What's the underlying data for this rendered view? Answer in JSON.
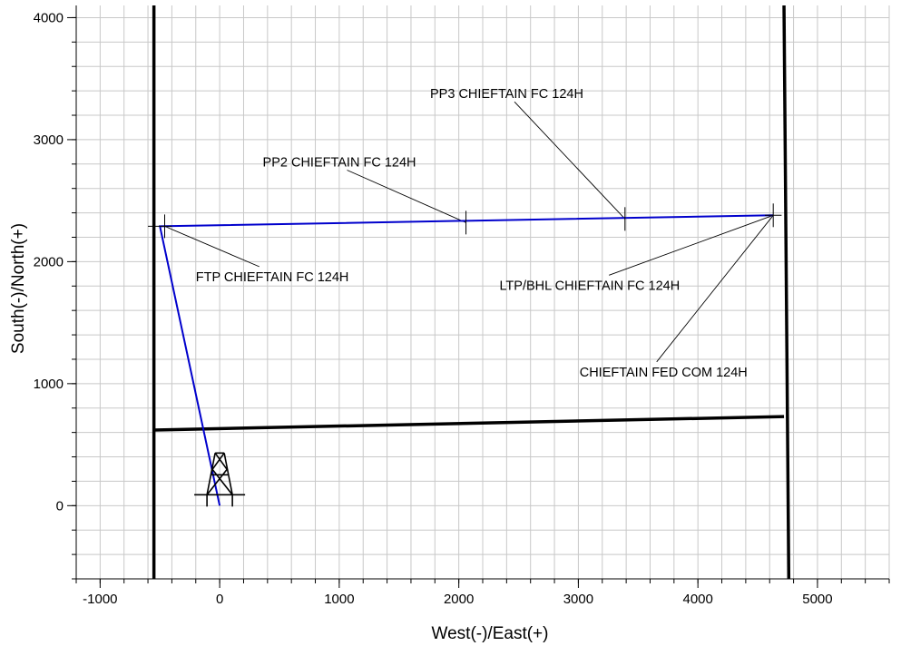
{
  "chart_data": {
    "type": "line",
    "title": "",
    "xlabel": "West(-)/East(+)",
    "ylabel": "South(-)/North(+)",
    "xlim": [
      -1200,
      5600
    ],
    "ylim": [
      -600,
      4100
    ],
    "xticks": [
      -1000,
      0,
      1000,
      2000,
      3000,
      4000,
      5000
    ],
    "xtick_labels": [
      "-1000",
      "0",
      "1000",
      "2000",
      "3000",
      "4000",
      "5000"
    ],
    "yticks": [
      0,
      1000,
      2000,
      3000,
      4000
    ],
    "ytick_labels": [
      "0",
      "1000",
      "2000",
      "3000",
      "4000"
    ],
    "grid": true,
    "grid_step": 200,
    "colors": {
      "wellpath": "#0000cc",
      "boundary": "#000000",
      "grid": "#c8c8c8",
      "label": "#000000"
    },
    "wellpath": {
      "name": "CHIEFTAIN FED COM 124H",
      "x": [
        0,
        -500,
        4630
      ],
      "y": [
        0,
        2290,
        2380
      ]
    },
    "boundaries": [
      {
        "x": [
          -550,
          -550
        ],
        "y": [
          4100,
          -600
        ]
      },
      {
        "x": [
          4720,
          4760
        ],
        "y": [
          4100,
          -600
        ]
      },
      {
        "x": [
          -550,
          4720
        ],
        "y": [
          620,
          730
        ]
      }
    ],
    "annotations": [
      {
        "text": "PP3 CHIEFTAIN FC 124H",
        "x": 1760,
        "y": 3340,
        "point_x": 3390,
        "point_y": 2350
      },
      {
        "text": "PP2 CHIEFTAIN FC 124H",
        "x": 360,
        "y": 2780,
        "point_x": 2060,
        "point_y": 2320
      },
      {
        "text": "FTP CHIEFTAIN FC 124H",
        "x": -200,
        "y": 1840,
        "point_x": -460,
        "point_y": 2290
      },
      {
        "text": "LTP/BHL CHIEFTAIN FC 124H",
        "x": 2340,
        "y": 1770,
        "point_x": 4630,
        "point_y": 2380
      },
      {
        "text": "CHIEFTAIN FED COM 124H",
        "x": 3010,
        "y": 1060,
        "point_x": 4630,
        "point_y": 2380,
        "color": "#0000cc"
      }
    ],
    "markers": [
      {
        "x": -460,
        "y": 2290
      },
      {
        "x": 2060,
        "y": 2320
      },
      {
        "x": 3390,
        "y": 2350
      },
      {
        "x": 4630,
        "y": 2380
      }
    ],
    "rig_icon": {
      "name": "drilling-rig-icon",
      "x": 0,
      "y": 0
    }
  }
}
